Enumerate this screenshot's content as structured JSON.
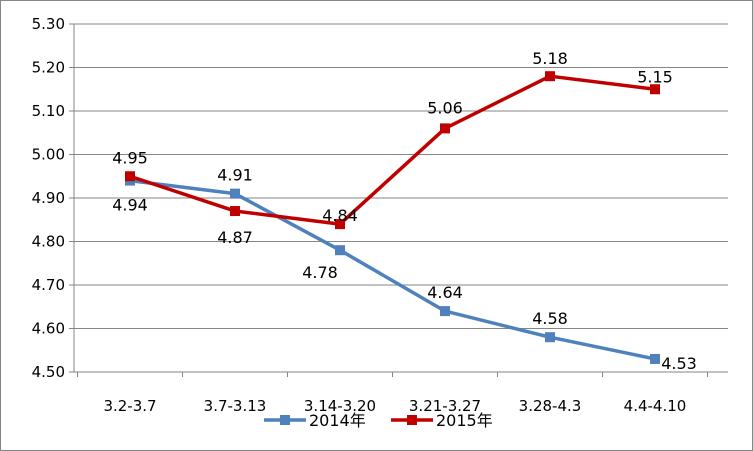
{
  "chart_data": {
    "type": "line",
    "title": "",
    "xlabel": "",
    "ylabel": "",
    "categories": [
      "3.2-3.7",
      "3.7-3.13",
      "3.14-3.20",
      "3.21-3.27",
      "3.28-4.3",
      "4.4-4.10"
    ],
    "ylim": [
      4.5,
      5.3
    ],
    "yticks": [
      "4.50",
      "4.60",
      "4.70",
      "4.80",
      "4.90",
      "5.00",
      "5.10",
      "5.20",
      "5.30"
    ],
    "grid": true,
    "legend_position": "bottom",
    "series": [
      {
        "name": "2014年",
        "color": "#4f81bd",
        "marker": "square",
        "values": [
          4.94,
          4.91,
          4.78,
          4.64,
          4.58,
          4.53
        ],
        "labels": [
          "4.94",
          "4.91",
          "4.78",
          "4.64",
          "4.58",
          "4.53"
        ]
      },
      {
        "name": "2015年",
        "color": "#c00000",
        "marker": "square",
        "values": [
          4.95,
          4.87,
          4.84,
          5.06,
          5.18,
          5.15
        ],
        "labels": [
          "4.95",
          "4.87",
          "4.84",
          "5.06",
          "5.18",
          "5.15"
        ]
      }
    ]
  }
}
